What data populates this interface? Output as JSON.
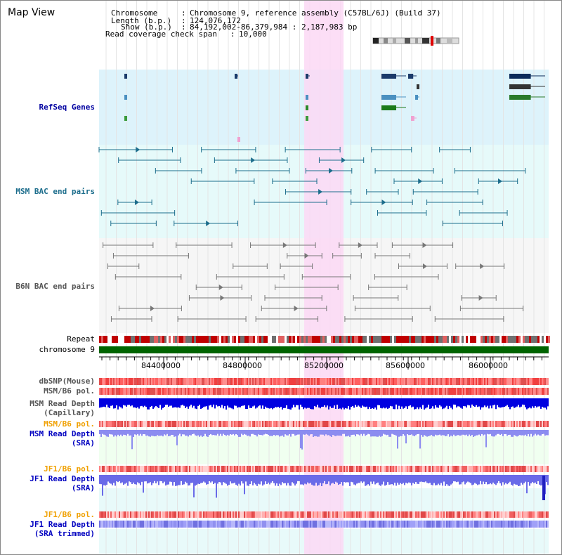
{
  "view_title": "Map View",
  "header": {
    "chromosome_label": "Chromosome",
    "chromosome_value": "Chromosome 9, reference assembly (C57BL/6J) (Build 37)",
    "length_label": "Length (b.p.)",
    "length_value": "124,076,172",
    "show_label": "Show (b.p.)",
    "show_value": "84,192,002-86,379,984 : 2,187,983 bp",
    "coverage_label": "Read coverage check span",
    "coverage_value": "10,000",
    "separator": ":"
  },
  "tracks": {
    "refseq": "RefSeq Genes",
    "msm_bac": "MSM BAC end pairs",
    "b6n_bac": "B6N BAC end pairs",
    "repeat": "Repeat",
    "chromosome": "chromosome 9",
    "dbsnp": "dbSNP(Mouse)",
    "msm_b6_pol_1": "MSM/B6 pol.",
    "msm_read_depth_cap_1": "MSM Read Depth",
    "msm_read_depth_cap_2": "(Capillary)",
    "msm_b6_pol_2": "MSM/B6 pol.",
    "msm_read_depth_sra_1": "MSM Read Depth",
    "msm_read_depth_sra_2": "(SRA)",
    "jf1_b6_pol_1": "JF1/B6 pol.",
    "jf1_read_depth_sra_1": "JF1 Read Depth",
    "jf1_read_depth_sra_2": "(SRA)",
    "jf1_b6_pol_2": "JF1/B6 pol.",
    "jf1_read_depth_trim_1": "JF1 Read Depth",
    "jf1_read_depth_trim_2": "(SRA trimmed)"
  },
  "axis_ticks": [
    "84400000",
    "84800000",
    "85200000",
    "85600000",
    "86000000"
  ],
  "colors": {
    "highlight": "#fcd8f4",
    "refseq_bg": "#ddf3fb",
    "bac_bg": "#e6fafa",
    "chromosome": "#006400",
    "msm_bac_line": "#1c6d8c",
    "b6n_bac_line": "#777777",
    "depth_blue": "#0000e0",
    "depth_light": "#8c8cf0"
  }
}
